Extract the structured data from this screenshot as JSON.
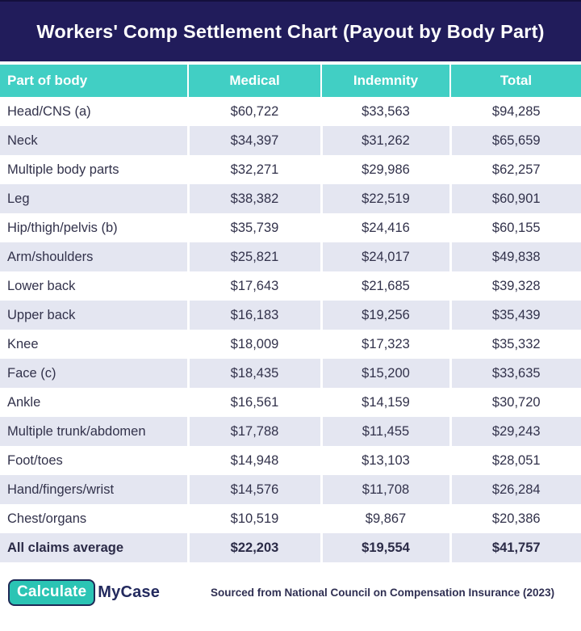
{
  "title": "Workers' Comp Settlement Chart (Payout by Body Part)",
  "colors": {
    "banner_navy": "#211c5b",
    "header_teal": "#41cfc4",
    "stripe_lavender": "#e4e6f1",
    "row_text": "#32324b",
    "logo_teal": "#2bc4b4",
    "logo_navy": "#232a5e"
  },
  "table": {
    "columns": [
      "Part of body",
      "Medical",
      "Indemnity",
      "Total"
    ],
    "rows": [
      {
        "part": "Head/CNS (a)",
        "medical": "$60,722",
        "indemnity": "$33,563",
        "total": "$94,285",
        "is_average": false
      },
      {
        "part": "Neck",
        "medical": "$34,397",
        "indemnity": "$31,262",
        "total": "$65,659",
        "is_average": false
      },
      {
        "part": "Multiple body parts",
        "medical": "$32,271",
        "indemnity": "$29,986",
        "total": "$62,257",
        "is_average": false
      },
      {
        "part": "Leg",
        "medical": "$38,382",
        "indemnity": "$22,519",
        "total": "$60,901",
        "is_average": false
      },
      {
        "part": "Hip/thigh/pelvis (b)",
        "medical": "$35,739",
        "indemnity": "$24,416",
        "total": "$60,155",
        "is_average": false
      },
      {
        "part": "Arm/shoulders",
        "medical": "$25,821",
        "indemnity": "$24,017",
        "total": "$49,838",
        "is_average": false
      },
      {
        "part": "Lower back",
        "medical": "$17,643",
        "indemnity": "$21,685",
        "total": "$39,328",
        "is_average": false
      },
      {
        "part": "Upper back",
        "medical": "$16,183",
        "indemnity": "$19,256",
        "total": "$35,439",
        "is_average": false
      },
      {
        "part": "Knee",
        "medical": "$18,009",
        "indemnity": "$17,323",
        "total": "$35,332",
        "is_average": false
      },
      {
        "part": "Face (c)",
        "medical": "$18,435",
        "indemnity": "$15,200",
        "total": "$33,635",
        "is_average": false
      },
      {
        "part": "Ankle",
        "medical": "$16,561",
        "indemnity": "$14,159",
        "total": "$30,720",
        "is_average": false
      },
      {
        "part": "Multiple trunk/abdomen",
        "medical": "$17,788",
        "indemnity": "$11,455",
        "total": "$29,243",
        "is_average": false
      },
      {
        "part": "Foot/toes",
        "medical": "$14,948",
        "indemnity": "$13,103",
        "total": "$28,051",
        "is_average": false
      },
      {
        "part": "Hand/fingers/wrist",
        "medical": "$14,576",
        "indemnity": "$11,708",
        "total": "$26,284",
        "is_average": false
      },
      {
        "part": "Chest/organs",
        "medical": "$10,519",
        "indemnity": "$9,867",
        "total": "$20,386",
        "is_average": false
      },
      {
        "part": "All claims average",
        "medical": "$22,203",
        "indemnity": "$19,554",
        "total": "$41,757",
        "is_average": true
      }
    ]
  },
  "footer": {
    "logo_calculate": "Calculate",
    "logo_mycase": "MyCase",
    "source": "Sourced from National Council on Compensation Insurance (2023)"
  },
  "chart_data": {
    "type": "table",
    "title": "Workers' Comp Settlement Chart (Payout by Body Part)",
    "columns": [
      "Part of body",
      "Medical",
      "Indemnity",
      "Total"
    ],
    "categories": [
      "Head/CNS (a)",
      "Neck",
      "Multiple body parts",
      "Leg",
      "Hip/thigh/pelvis (b)",
      "Arm/shoulders",
      "Lower back",
      "Upper back",
      "Knee",
      "Face (c)",
      "Ankle",
      "Multiple trunk/abdomen",
      "Foot/toes",
      "Hand/fingers/wrist",
      "Chest/organs",
      "All claims average"
    ],
    "series": [
      {
        "name": "Medical",
        "values": [
          60722,
          34397,
          32271,
          38382,
          35739,
          25821,
          17643,
          16183,
          18009,
          18435,
          16561,
          17788,
          14948,
          14576,
          10519,
          22203
        ]
      },
      {
        "name": "Indemnity",
        "values": [
          33563,
          31262,
          29986,
          22519,
          24416,
          24017,
          21685,
          19256,
          17323,
          15200,
          14159,
          11455,
          13103,
          11708,
          9867,
          19554
        ]
      },
      {
        "name": "Total",
        "values": [
          94285,
          65659,
          62257,
          60901,
          60155,
          49838,
          39328,
          35439,
          35332,
          33635,
          30720,
          29243,
          28051,
          26284,
          20386,
          41757
        ]
      }
    ],
    "source": "Sourced from National Council on Compensation Insurance (2023)"
  }
}
